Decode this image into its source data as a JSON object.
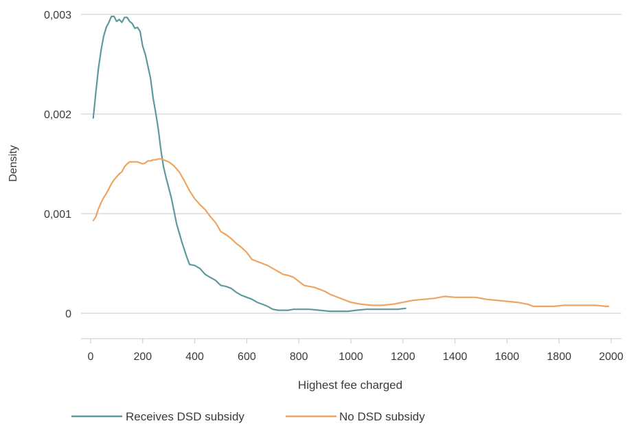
{
  "chart_data": {
    "type": "line",
    "xlabel": "Highest fee charged",
    "ylabel": "Density",
    "xlim": [
      0,
      2000
    ],
    "ylim": [
      0,
      0.003
    ],
    "x_ticks": [
      0,
      200,
      400,
      600,
      800,
      1000,
      1200,
      1400,
      1600,
      1800,
      2000
    ],
    "x_tick_labels": [
      "0",
      "200",
      "400",
      "600",
      "800",
      "1000",
      "1200",
      "1400",
      "1600",
      "1800",
      "2000"
    ],
    "y_ticks": [
      0,
      0.001,
      0.002,
      0.003
    ],
    "y_tick_labels": [
      "0",
      "0,001",
      "0,002",
      "0,003"
    ],
    "grid": "horizontal",
    "legend_position": "bottom",
    "series": [
      {
        "name": "Receives DSD subsidy",
        "color": "#5b9a9c",
        "points": [
          [
            10,
            0.00196
          ],
          [
            20,
            0.00222
          ],
          [
            30,
            0.00246
          ],
          [
            40,
            0.00264
          ],
          [
            50,
            0.00278
          ],
          [
            60,
            0.00287
          ],
          [
            70,
            0.00292
          ],
          [
            80,
            0.00298
          ],
          [
            90,
            0.00298
          ],
          [
            100,
            0.00293
          ],
          [
            110,
            0.00295
          ],
          [
            120,
            0.00292
          ],
          [
            130,
            0.00297
          ],
          [
            140,
            0.00297
          ],
          [
            150,
            0.00293
          ],
          [
            160,
            0.00291
          ],
          [
            170,
            0.00286
          ],
          [
            180,
            0.00287
          ],
          [
            190,
            0.00283
          ],
          [
            200,
            0.00268
          ],
          [
            210,
            0.0026
          ],
          [
            220,
            0.00248
          ],
          [
            230,
            0.00236
          ],
          [
            240,
            0.00216
          ],
          [
            250,
            0.00201
          ],
          [
            260,
            0.00185
          ],
          [
            270,
            0.00164
          ],
          [
            280,
            0.00147
          ],
          [
            290,
            0.00136
          ],
          [
            300,
            0.00126
          ],
          [
            310,
            0.00116
          ],
          [
            320,
            0.00103
          ],
          [
            330,
            0.0009
          ],
          [
            340,
            0.00081
          ],
          [
            350,
            0.00072
          ],
          [
            360,
            0.00064
          ],
          [
            370,
            0.00056
          ],
          [
            380,
            0.00049
          ],
          [
            400,
            0.00048
          ],
          [
            420,
            0.00045
          ],
          [
            440,
            0.00039
          ],
          [
            460,
            0.00036
          ],
          [
            480,
            0.00033
          ],
          [
            500,
            0.00028
          ],
          [
            520,
            0.00027
          ],
          [
            540,
            0.00025
          ],
          [
            560,
            0.00021
          ],
          [
            580,
            0.00018
          ],
          [
            600,
            0.00016
          ],
          [
            620,
            0.00014
          ],
          [
            640,
            0.00011
          ],
          [
            660,
            9e-05
          ],
          [
            680,
            7e-05
          ],
          [
            700,
            4e-05
          ],
          [
            720,
            3e-05
          ],
          [
            740,
            3e-05
          ],
          [
            760,
            3e-05
          ],
          [
            780,
            4e-05
          ],
          [
            800,
            4e-05
          ],
          [
            840,
            4e-05
          ],
          [
            880,
            3e-05
          ],
          [
            920,
            2e-05
          ],
          [
            960,
            2e-05
          ],
          [
            990,
            2e-05
          ],
          [
            1020,
            3e-05
          ],
          [
            1060,
            4e-05
          ],
          [
            1100,
            4e-05
          ],
          [
            1140,
            4e-05
          ],
          [
            1180,
            4e-05
          ],
          [
            1210,
            5e-05
          ]
        ]
      },
      {
        "name": "No DSD subsidy",
        "color": "#f0a35e",
        "points": [
          [
            10,
            0.00093
          ],
          [
            20,
            0.00097
          ],
          [
            30,
            0.00105
          ],
          [
            40,
            0.00111
          ],
          [
            50,
            0.00116
          ],
          [
            60,
            0.0012
          ],
          [
            70,
            0.00125
          ],
          [
            80,
            0.0013
          ],
          [
            90,
            0.00134
          ],
          [
            100,
            0.00137
          ],
          [
            110,
            0.0014
          ],
          [
            120,
            0.00142
          ],
          [
            130,
            0.00147
          ],
          [
            140,
            0.0015
          ],
          [
            150,
            0.00152
          ],
          [
            160,
            0.00152
          ],
          [
            170,
            0.00152
          ],
          [
            180,
            0.00152
          ],
          [
            190,
            0.00151
          ],
          [
            200,
            0.0015
          ],
          [
            210,
            0.00151
          ],
          [
            220,
            0.00153
          ],
          [
            230,
            0.00153
          ],
          [
            240,
            0.00154
          ],
          [
            250,
            0.00154
          ],
          [
            260,
            0.00155
          ],
          [
            270,
            0.00155
          ],
          [
            280,
            0.00154
          ],
          [
            290,
            0.00153
          ],
          [
            300,
            0.00152
          ],
          [
            320,
            0.00148
          ],
          [
            340,
            0.00142
          ],
          [
            360,
            0.00133
          ],
          [
            380,
            0.00123
          ],
          [
            400,
            0.00115
          ],
          [
            420,
            0.00109
          ],
          [
            440,
            0.00104
          ],
          [
            460,
            0.00097
          ],
          [
            480,
            0.00091
          ],
          [
            500,
            0.00082
          ],
          [
            520,
            0.00079
          ],
          [
            540,
            0.00075
          ],
          [
            560,
            0.0007
          ],
          [
            580,
            0.00066
          ],
          [
            600,
            0.00061
          ],
          [
            620,
            0.00054
          ],
          [
            640,
            0.00052
          ],
          [
            660,
            0.0005
          ],
          [
            680,
            0.00048
          ],
          [
            700,
            0.00045
          ],
          [
            720,
            0.00042
          ],
          [
            740,
            0.00039
          ],
          [
            760,
            0.00038
          ],
          [
            780,
            0.00036
          ],
          [
            800,
            0.00032
          ],
          [
            820,
            0.00028
          ],
          [
            840,
            0.00027
          ],
          [
            860,
            0.00026
          ],
          [
            880,
            0.00024
          ],
          [
            900,
            0.00022
          ],
          [
            920,
            0.00019
          ],
          [
            940,
            0.00017
          ],
          [
            960,
            0.00015
          ],
          [
            980,
            0.00013
          ],
          [
            1000,
            0.00011
          ],
          [
            1020,
            0.0001
          ],
          [
            1040,
            9e-05
          ],
          [
            1080,
            8e-05
          ],
          [
            1120,
            8e-05
          ],
          [
            1160,
            9e-05
          ],
          [
            1200,
            0.00011
          ],
          [
            1240,
            0.00013
          ],
          [
            1280,
            0.00014
          ],
          [
            1320,
            0.00015
          ],
          [
            1360,
            0.00017
          ],
          [
            1400,
            0.00016
          ],
          [
            1440,
            0.00016
          ],
          [
            1480,
            0.00016
          ],
          [
            1520,
            0.00014
          ],
          [
            1560,
            0.00013
          ],
          [
            1600,
            0.00012
          ],
          [
            1640,
            0.00011
          ],
          [
            1680,
            9e-05
          ],
          [
            1700,
            7e-05
          ],
          [
            1740,
            7e-05
          ],
          [
            1780,
            7e-05
          ],
          [
            1820,
            8e-05
          ],
          [
            1860,
            8e-05
          ],
          [
            1900,
            8e-05
          ],
          [
            1940,
            8e-05
          ],
          [
            1980,
            7e-05
          ],
          [
            1990,
            7e-05
          ]
        ]
      }
    ]
  }
}
